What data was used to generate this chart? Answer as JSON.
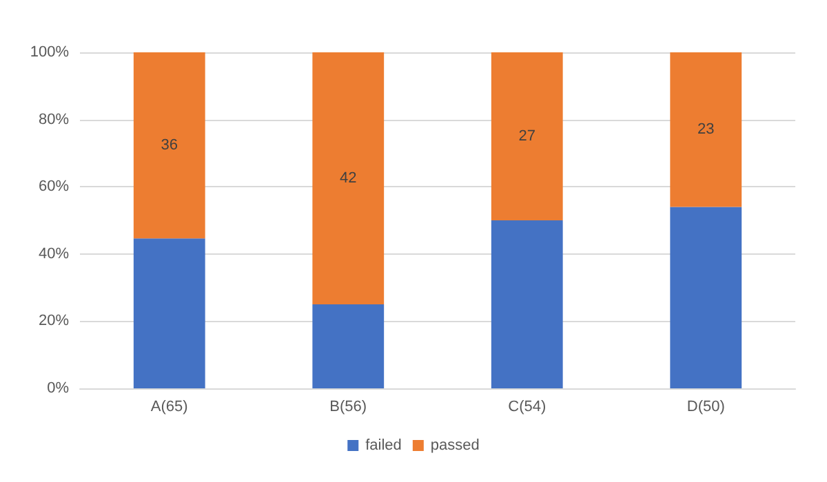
{
  "chart_data": {
    "type": "bar",
    "stacked": true,
    "categories": [
      "A(65)",
      "B(56)",
      "C(54)",
      "D(50)"
    ],
    "series": [
      {
        "name": "failed",
        "color": "#4472c4",
        "values": [
          44.6,
          25,
          50,
          54
        ]
      },
      {
        "name": "passed",
        "color": "#ed7d31",
        "values": [
          55.4,
          75,
          50,
          46
        ]
      }
    ],
    "annotations": [
      "36",
      "42",
      "27",
      "23"
    ],
    "ylim": [
      0,
      100
    ],
    "yticks": [
      {
        "value": 0,
        "label": "0%"
      },
      {
        "value": 20,
        "label": "20%"
      },
      {
        "value": 40,
        "label": "40%"
      },
      {
        "value": 60,
        "label": "60%"
      },
      {
        "value": 80,
        "label": "80%"
      },
      {
        "value": 100,
        "label": "100%"
      }
    ],
    "grid": "y",
    "legend": "bottom"
  }
}
